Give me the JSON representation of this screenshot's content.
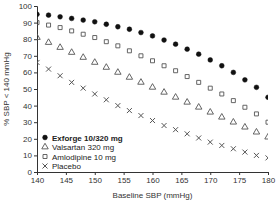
{
  "chart_data": {
    "type": "scatter",
    "x_label": "Baseline SBP (mmHg)",
    "y_label": "% SBP < 140 mmHg",
    "x": [
      140,
      142,
      144,
      146,
      148,
      150,
      152,
      154,
      156,
      158,
      160,
      162,
      164,
      166,
      168,
      170,
      172,
      174,
      176,
      178,
      180
    ],
    "series": [
      {
        "name": "Exforge 10/320 mg",
        "color": "#111111",
        "marker": "filled-circle",
        "values": [
          95,
          94.5,
          93.5,
          92.5,
          91.5,
          90.5,
          89,
          87.5,
          86,
          84,
          82,
          79.5,
          77,
          74,
          71,
          67.5,
          64,
          60,
          55.5,
          51,
          45
        ]
      },
      {
        "name": "Valsartan 320 mg",
        "color": "#555555",
        "marker": "open-triangle",
        "values": [
          81,
          78,
          75,
          72,
          69,
          66,
          63,
          60,
          57,
          54,
          51,
          48,
          45,
          42,
          39,
          36,
          33,
          30,
          27,
          24,
          21
        ]
      },
      {
        "name": "Amlodipine 10 mg",
        "color": "#555555",
        "marker": "open-square",
        "values": [
          90,
          88.5,
          87,
          85,
          83,
          81,
          78.5,
          76,
          73,
          70,
          67,
          64,
          61,
          57.5,
          54,
          50.5,
          47,
          43,
          39,
          35,
          30
        ]
      },
      {
        "name": "Placebo",
        "color": "#555555",
        "marker": "x",
        "values": [
          66,
          62,
          58,
          54,
          50.5,
          47,
          43.5,
          40,
          37,
          34,
          31,
          28,
          25.5,
          23,
          20.5,
          18,
          16,
          14,
          12,
          10,
          8.5
        ]
      }
    ],
    "xlim": [
      140,
      180
    ],
    "xticks": [
      140,
      145,
      150,
      155,
      160,
      165,
      170,
      175,
      180
    ],
    "ylim": [
      0,
      100
    ],
    "yticks": [
      0,
      10,
      20,
      30,
      40,
      50,
      60,
      70,
      80,
      90,
      100
    ],
    "grid": false,
    "legend": "lower left"
  }
}
